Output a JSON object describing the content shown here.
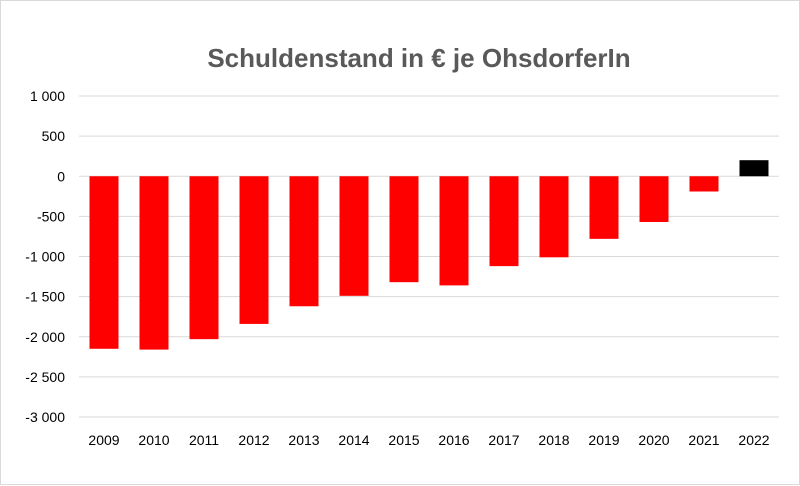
{
  "chart_data": {
    "type": "bar",
    "title": "Schuldenstand in € je OhsdorferIn",
    "xlabel": "",
    "ylabel": "",
    "categories": [
      "2009",
      "2010",
      "2011",
      "2012",
      "2013",
      "2014",
      "2015",
      "2016",
      "2017",
      "2018",
      "2019",
      "2020",
      "2021",
      "2022"
    ],
    "values": [
      -2150,
      -2160,
      -2030,
      -1840,
      -1620,
      -1490,
      -1320,
      -1360,
      -1120,
      -1010,
      -780,
      -570,
      -190,
      200
    ],
    "ylim": [
      -3000,
      1000
    ],
    "yticks": [
      1000,
      500,
      0,
      -500,
      -1000,
      -1500,
      -2000,
      -2500,
      -3000
    ],
    "ytick_labels": [
      "1 000",
      "500",
      "0",
      "-500",
      "-1 000",
      "-1 500",
      "-2 000",
      "-2 500",
      "-3 000"
    ],
    "grid": true,
    "legend": "none",
    "colors": {
      "negative": "#ff0000",
      "positive": "#000000",
      "grid": "#d9d9d9",
      "title": "#595959"
    }
  }
}
